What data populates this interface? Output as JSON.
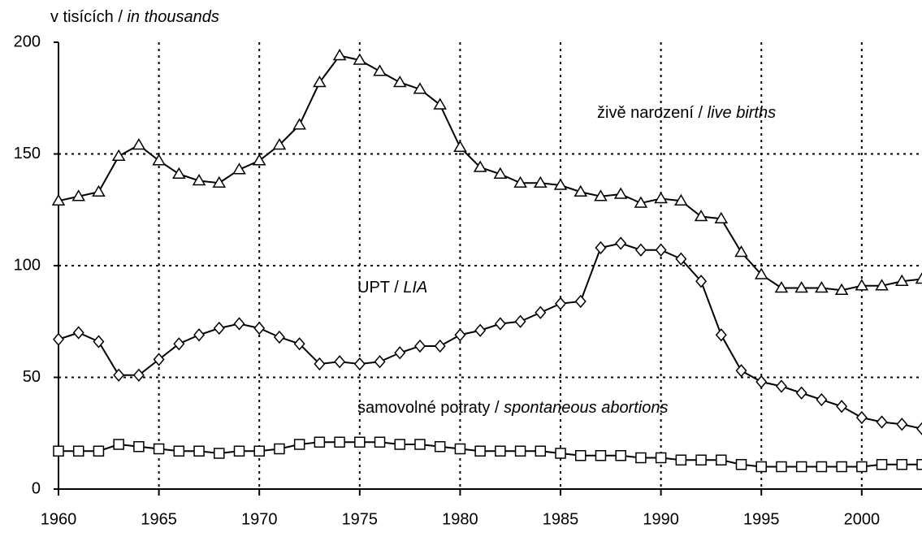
{
  "chart_data": {
    "type": "line",
    "y_label": "v tisících / in thousands",
    "x": [
      1960,
      1961,
      1962,
      1963,
      1964,
      1965,
      1966,
      1967,
      1968,
      1969,
      1970,
      1971,
      1972,
      1973,
      1974,
      1975,
      1976,
      1977,
      1978,
      1979,
      1980,
      1981,
      1982,
      1983,
      1984,
      1985,
      1986,
      1987,
      1988,
      1989,
      1990,
      1991,
      1992,
      1993,
      1994,
      1995,
      1996,
      1997,
      1998,
      1999,
      2000,
      2001,
      2002,
      2003
    ],
    "series": [
      {
        "name": "živě narození / live births",
        "color": "#000000",
        "marker": "triangle",
        "values": [
          129,
          131,
          133,
          149,
          154,
          147,
          141,
          138,
          137,
          143,
          147,
          154,
          163,
          182,
          194,
          192,
          187,
          182,
          179,
          172,
          153,
          144,
          141,
          137,
          137,
          136,
          133,
          131,
          132,
          128,
          130,
          129,
          122,
          121,
          106,
          96,
          90,
          90,
          90,
          89,
          91,
          91,
          93,
          94
        ]
      },
      {
        "name": "UPT / LIA",
        "color": "#000000",
        "marker": "diamond",
        "values": [
          67,
          70,
          66,
          51,
          51,
          58,
          65,
          69,
          72,
          74,
          72,
          68,
          65,
          56,
          57,
          56,
          57,
          61,
          64,
          64,
          69,
          71,
          74,
          75,
          79,
          83,
          84,
          108,
          110,
          107,
          107,
          103,
          93,
          69,
          53,
          48,
          46,
          43,
          40,
          37,
          32,
          30,
          29,
          27
        ]
      },
      {
        "name": "samovolné potraty / spontaneous abortions",
        "color": "#000000",
        "marker": "square",
        "values": [
          17,
          17,
          17,
          20,
          19,
          18,
          17,
          17,
          16,
          17,
          17,
          18,
          20,
          21,
          21,
          21,
          21,
          20,
          20,
          19,
          18,
          17,
          17,
          17,
          17,
          16,
          15,
          15,
          15,
          14,
          14,
          13,
          13,
          13,
          11,
          10,
          10,
          10,
          10,
          10,
          10,
          11,
          11,
          11
        ]
      }
    ],
    "xlim": [
      1960,
      2003
    ],
    "xticks": [
      1960,
      1965,
      1970,
      1975,
      1980,
      1985,
      1990,
      1995,
      2000
    ],
    "ylim": [
      0,
      200
    ],
    "yticks": [
      0,
      50,
      100,
      150,
      200
    ],
    "grid": true
  }
}
